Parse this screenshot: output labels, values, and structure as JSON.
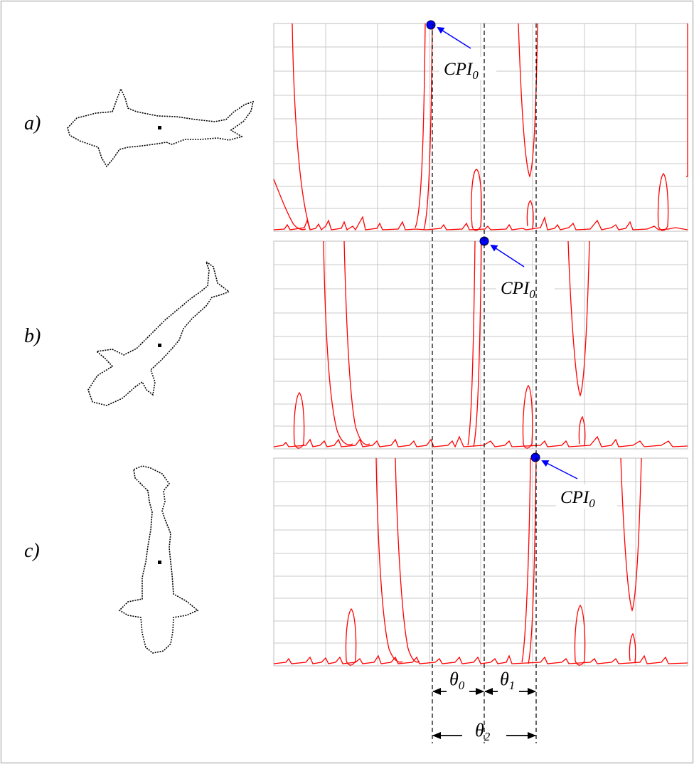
{
  "panels": [
    {
      "id": "a",
      "label": "a)",
      "annotation": {
        "base": "CPI",
        "sub": "0"
      }
    },
    {
      "id": "b",
      "label": "b)",
      "annotation": {
        "base": "CPI",
        "sub": "0"
      }
    },
    {
      "id": "c",
      "label": "c)",
      "annotation": {
        "base": "CPI",
        "sub": "0"
      }
    }
  ],
  "angles": [
    {
      "base": "θ",
      "sub": "0"
    },
    {
      "base": "θ",
      "sub": "1"
    },
    {
      "base": "θ",
      "sub": "2"
    }
  ],
  "colors": {
    "frame": "#bdbdbd",
    "grid": "#c8c8c8",
    "curve": "#ff0000",
    "marker_fill": "#0000ff",
    "marker_stroke": "#000033",
    "arrow": "#0000ff",
    "outline": "#000000"
  }
}
